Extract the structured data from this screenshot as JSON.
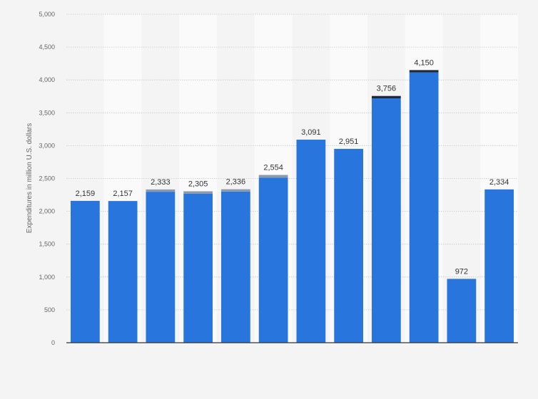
{
  "chart_data": {
    "type": "bar",
    "stacked": true,
    "title": "",
    "xlabel": "",
    "ylabel": "Expenditures in million U.S. dollars",
    "ylim": [
      0,
      5000
    ],
    "yticks": [
      0,
      500,
      1000,
      1500,
      2000,
      2500,
      3000,
      3500,
      4000,
      4500,
      5000
    ],
    "ytick_labels": [
      "0",
      "500",
      "1,000",
      "1,500",
      "2,000",
      "2,500",
      "3,000",
      "3,500",
      "4,000",
      "4,500",
      "5,000"
    ],
    "grid": true,
    "totals": [
      2159,
      2157,
      2333,
      2305,
      2336,
      2554,
      3091,
      2951,
      3756,
      4150,
      972,
      2334
    ],
    "total_labels": [
      "2,159",
      "2,157",
      "2,333",
      "2,305",
      "2,336",
      "2,554",
      "3,091",
      "2,951",
      "3,756",
      "4,150",
      "972",
      "2,334"
    ],
    "series": [
      {
        "color": "#2876dd",
        "values": [
          2159,
          2157,
          2298,
          2270,
          2301,
          2514,
          3091,
          2951,
          3720,
          4114,
          972,
          2334
        ]
      },
      {
        "color": "#8c9aab",
        "values": [
          0,
          0,
          35,
          35,
          35,
          40,
          0,
          0,
          0,
          0,
          0,
          0
        ]
      },
      {
        "color": "#1d2a3d",
        "values": [
          0,
          0,
          0,
          0,
          0,
          0,
          0,
          0,
          36,
          36,
          0,
          0
        ]
      }
    ]
  }
}
